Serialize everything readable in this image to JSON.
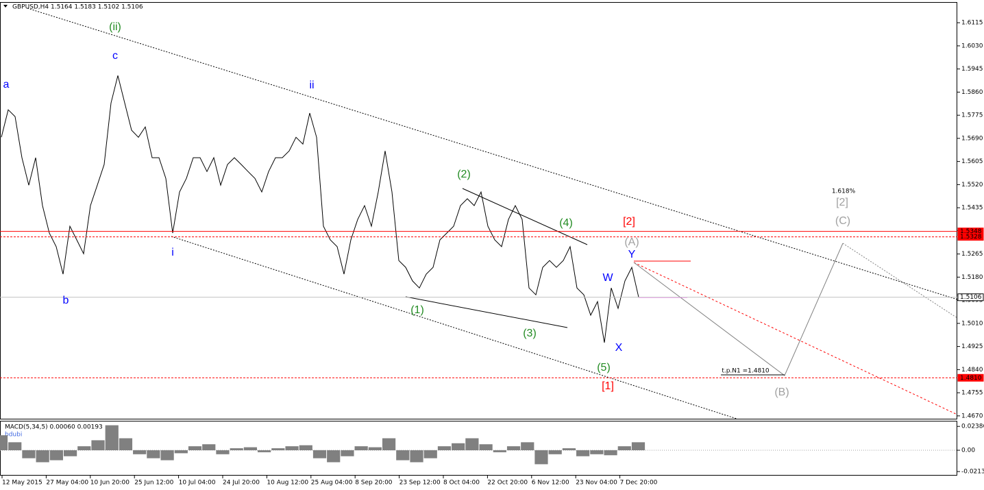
{
  "chart_data": [
    {
      "type": "line",
      "title": "GBPUSD,H4  1.5164 1.5183 1.5102 1.5106",
      "color": "#000000",
      "values": [
        1.5694,
        1.5795,
        1.577,
        1.5619,
        1.5518,
        1.5619,
        1.5443,
        1.5342,
        1.5292,
        1.5191,
        1.5367,
        1.5317,
        1.5266,
        1.5443,
        1.5518,
        1.5594,
        1.582,
        1.5921,
        1.582,
        1.572,
        1.5694,
        1.5732,
        1.5619,
        1.5619,
        1.5543,
        1.5342,
        1.5493,
        1.5543,
        1.5619,
        1.5619,
        1.5568,
        1.5619,
        1.5518,
        1.5594,
        1.5619,
        1.5594,
        1.5568,
        1.5543,
        1.5493,
        1.5568,
        1.5619,
        1.5619,
        1.5644,
        1.5694,
        1.5669,
        1.5783,
        1.5694,
        1.5367,
        1.5317,
        1.5292,
        1.5191,
        1.5317,
        1.5392,
        1.5443,
        1.5367,
        1.5493,
        1.5644,
        1.5493,
        1.5241,
        1.5216,
        1.5166,
        1.514,
        1.5191,
        1.5216,
        1.5317,
        1.5342,
        1.5367,
        1.5443,
        1.5468,
        1.5443,
        1.5493,
        1.5367,
        1.5317,
        1.5292,
        1.5392,
        1.5443,
        1.5392,
        1.514,
        1.5115,
        1.5216,
        1.5241,
        1.5216,
        1.5241,
        1.5292,
        1.514,
        1.5115,
        1.504,
        1.509,
        1.4939,
        1.514,
        1.5065,
        1.5166,
        1.5216,
        1.5106
      ],
      "ylim": [
        1.4657,
        1.6191
      ],
      "yticks": [
        1.6115,
        {
          "value": 1.603,
          "label": "1.6030"
        },
        1.5945,
        {
          "value": 1.586,
          "label": "1.5860"
        },
        1.5775,
        {
          "value": 1.569,
          "label": "1.5690"
        },
        1.5605,
        {
          "value": 1.552,
          "label": "1.5520"
        },
        1.5435,
        {
          "value": 1.535,
          "label": "1.5350"
        },
        1.5265,
        {
          "value": 1.518,
          "label": "1.5180"
        },
        1.5095,
        {
          "value": 1.501,
          "label": "1.5010"
        },
        1.4925,
        {
          "value": 1.484,
          "label": "1.4840"
        },
        1.4755,
        {
          "value": 1.467,
          "label": "1.4670"
        }
      ],
      "xtick_labels": [
        "12 May 2015",
        "27 May 04:00",
        "10 Jun 20:00",
        "25 Jun 12:00",
        "10 Jul 04:00",
        "24 Jul 20:00",
        "10 Aug 12:00",
        "25 Aug 04:00",
        "8 Sep 20:00",
        "23 Sep 12:00",
        "8 Oct 04:00",
        "22 Oct 20:00",
        "6 Nov 12:00",
        "23 Nov 04:00",
        "7 Dec 20:00"
      ],
      "levels": [
        {
          "value": 1.5348,
          "label": "1.5348",
          "color": "#ff0000",
          "dash": false,
          "label_fill": "#ff0000"
        },
        {
          "value": 1.5328,
          "label": "1.5328",
          "color": "#ff0000",
          "dash": true,
          "label_fill": "#ff0000"
        },
        {
          "value": 1.5106,
          "label": "1.5106",
          "color": "#c0c0c0",
          "dash": false,
          "label_fill": "#ffffff"
        },
        {
          "value": 1.481,
          "label": "1.4810",
          "color": "#ff0000",
          "dash": true,
          "label_fill": "#ff0000"
        }
      ],
      "annotations": [
        {
          "text": "(ii)",
          "color": "#228b22"
        },
        {
          "text": "c",
          "color": "#0000ff"
        },
        {
          "text": "a",
          "color": "#0000ff"
        },
        {
          "text": "b",
          "color": "#0000ff"
        },
        {
          "text": "ii",
          "color": "#0000ff"
        },
        {
          "text": "i",
          "color": "#0000ff"
        },
        {
          "text": "(2)",
          "color": "#228b22"
        },
        {
          "text": "(4)",
          "color": "#228b22"
        },
        {
          "text": "(1)",
          "color": "#228b22"
        },
        {
          "text": "(3)",
          "color": "#228b22"
        },
        {
          "text": "(5)",
          "color": "#228b22"
        },
        {
          "text": "[2]",
          "color": "#ff0000"
        },
        {
          "text": "[1]",
          "color": "#ff0000"
        },
        {
          "text": "(A)",
          "color": "#a0a0a0"
        },
        {
          "text": "Y",
          "color": "#0000ff"
        },
        {
          "text": "W",
          "color": "#0000ff"
        },
        {
          "text": "X",
          "color": "#0000ff"
        },
        {
          "text": "1.618%",
          "color": "#404040"
        },
        {
          "text": "[2]",
          "color": "#a0a0a0"
        },
        {
          "text": "(C)",
          "color": "#a0a0a0"
        },
        {
          "text": "(B)",
          "color": "#a0a0a0"
        },
        {
          "text": "t.p.N1 =1.4810",
          "color": "#000000"
        }
      ]
    },
    {
      "type": "bar",
      "title": "MACD(5,34,5) 0.00060 0.00193",
      "subtitle": "bdubi",
      "color": "#808080",
      "values": [
        0.015,
        0.008,
        -0.008,
        -0.012,
        -0.01,
        -0.006,
        0.004,
        0.01,
        0.025,
        0.012,
        -0.004,
        -0.008,
        -0.01,
        -0.003,
        0.004,
        0.006,
        -0.004,
        0.002,
        0.003,
        -0.002,
        0.002,
        0.004,
        0.005,
        -0.008,
        -0.012,
        -0.006,
        0.004,
        0.003,
        0.012,
        -0.01,
        -0.012,
        -0.008,
        0.004,
        0.007,
        0.012,
        0.006,
        -0.002,
        0.004,
        0.008,
        -0.014,
        -0.004,
        0.002,
        -0.006,
        -0.004,
        -0.005,
        0.004,
        0.008
      ],
      "ylim": [
        -0.0247,
        0.0288
      ],
      "yticks": [
        0.02386,
        {
          "value": 0,
          "label": "0.00"
        },
        -0.02132
      ]
    }
  ]
}
